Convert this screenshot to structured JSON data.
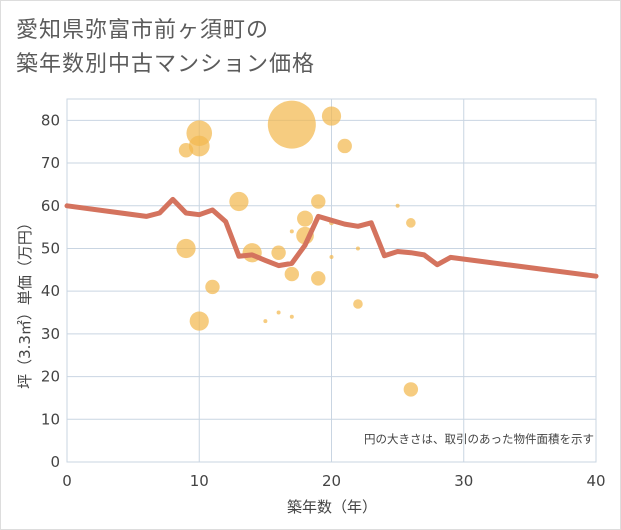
{
  "title": {
    "line1": "愛知県弥富市前ヶ須町の",
    "line2": "築年数別中古マンション価格"
  },
  "chart_data": {
    "type": "scatter+line",
    "xlabel": "築年数（年）",
    "ylabel": "坪（3.3㎡）単価（万円）",
    "xlim": [
      0,
      40
    ],
    "ylim": [
      0,
      85
    ],
    "x_ticks": [
      0,
      10,
      20,
      30,
      40
    ],
    "y_ticks": [
      0,
      10,
      20,
      30,
      40,
      50,
      60,
      70,
      80
    ],
    "grid": true,
    "note": "円の大きさは、取引のあった物件面積を示す",
    "colors": {
      "bubble": "#f2b94f",
      "line": "#d4735e",
      "grid": "#c9d5e2",
      "axis_text": "#444444"
    },
    "bubbles": [
      {
        "x": 9,
        "y": 73,
        "size": 9
      },
      {
        "x": 10,
        "y": 77,
        "size": 16
      },
      {
        "x": 10,
        "y": 74,
        "size": 13
      },
      {
        "x": 9,
        "y": 50,
        "size": 12
      },
      {
        "x": 10,
        "y": 33,
        "size": 12
      },
      {
        "x": 11,
        "y": 41,
        "size": 9
      },
      {
        "x": 13,
        "y": 61,
        "size": 12
      },
      {
        "x": 14,
        "y": 49,
        "size": 12
      },
      {
        "x": 15,
        "y": 33,
        "size": 2
      },
      {
        "x": 16,
        "y": 35,
        "size": 2
      },
      {
        "x": 16,
        "y": 49,
        "size": 9
      },
      {
        "x": 17,
        "y": 34,
        "size": 2
      },
      {
        "x": 17,
        "y": 44,
        "size": 9
      },
      {
        "x": 17,
        "y": 54,
        "size": 2
      },
      {
        "x": 17,
        "y": 79,
        "size": 30
      },
      {
        "x": 18,
        "y": 57,
        "size": 10
      },
      {
        "x": 18,
        "y": 53,
        "size": 11
      },
      {
        "x": 19,
        "y": 43,
        "size": 9
      },
      {
        "x": 19,
        "y": 61,
        "size": 9
      },
      {
        "x": 20,
        "y": 81,
        "size": 12
      },
      {
        "x": 20,
        "y": 56,
        "size": 3
      },
      {
        "x": 20,
        "y": 48,
        "size": 2
      },
      {
        "x": 21,
        "y": 74,
        "size": 9
      },
      {
        "x": 22,
        "y": 37,
        "size": 6
      },
      {
        "x": 22,
        "y": 50,
        "size": 2
      },
      {
        "x": 25,
        "y": 60,
        "size": 2
      },
      {
        "x": 26,
        "y": 56,
        "size": 6
      },
      {
        "x": 26,
        "y": 17,
        "size": 9
      }
    ],
    "trend_line": {
      "x": [
        0,
        6,
        7,
        8,
        9,
        10,
        11,
        12,
        13,
        14,
        15,
        16,
        17,
        18,
        19,
        20,
        21,
        22,
        23,
        24,
        25,
        26,
        27,
        28,
        29,
        40
      ],
      "y": [
        60,
        57.5,
        58.3,
        61.5,
        58.3,
        57.9,
        59,
        56.3,
        48.2,
        48.5,
        47.2,
        46,
        46.5,
        50.8,
        57.5,
        56.6,
        55.7,
        55.2,
        56,
        48.3,
        49.3,
        49,
        48.5,
        46.2,
        47.9,
        43.5
      ]
    }
  }
}
